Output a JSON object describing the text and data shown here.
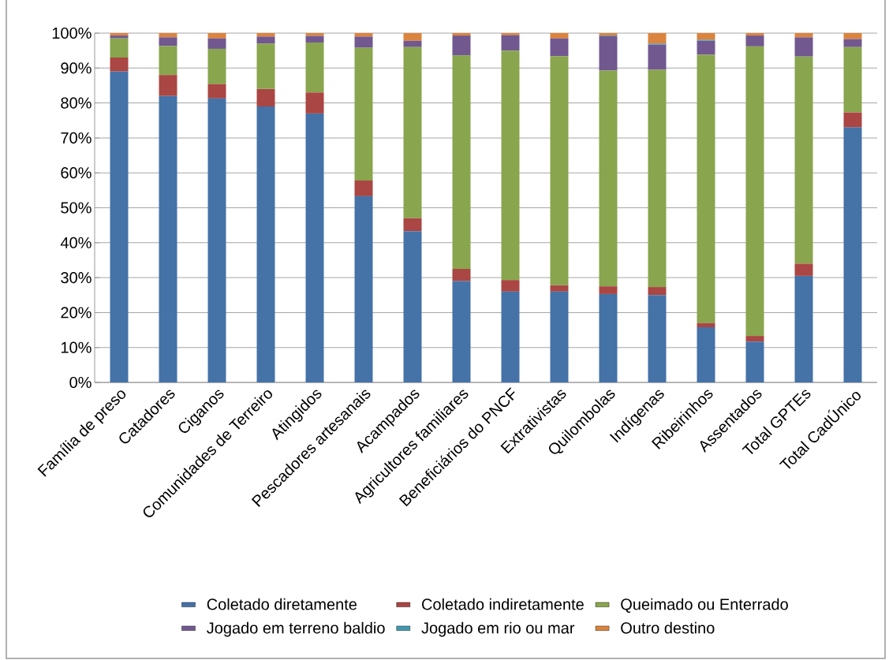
{
  "chart_data": {
    "type": "bar",
    "stacked": true,
    "categories": [
      "Família de preso",
      "Catadores",
      "Ciganos",
      "Comunidades de Terreiro",
      "Atingidos",
      "Pescadores artesanais",
      "Acampados",
      "Agricultores familiares",
      "Beneficiários do PNCF",
      "Extrativistas",
      "Quilombolas",
      "Indígenas",
      "Ribeirinhos",
      "Assentados",
      "Total GPTEs",
      "Total CadÚnico"
    ],
    "series": [
      {
        "name": "Coletado diretamente",
        "color": "#4572a7",
        "values": [
          89,
          82,
          81.3,
          79,
          77,
          53.3,
          43.3,
          29,
          26,
          26,
          25.3,
          25,
          15.8,
          11.7,
          30.5,
          73
        ]
      },
      {
        "name": "Coletado indiretamente",
        "color": "#aa4643",
        "values": [
          4,
          6,
          4.1,
          5,
          6,
          4.5,
          3.7,
          3.5,
          3.3,
          1.8,
          2.2,
          2.3,
          1.2,
          1.6,
          3.5,
          4.3
        ]
      },
      {
        "name": "Queimado ou Enterrado",
        "color": "#89a54e",
        "values": [
          5.5,
          8.3,
          10.1,
          13,
          14.3,
          38,
          49,
          61.1,
          65.7,
          65.6,
          61.8,
          62.2,
          76.8,
          82.9,
          59.3,
          18.7
        ]
      },
      {
        "name": "Jogado em terreno baldio",
        "color": "#71588f",
        "values": [
          0.8,
          2.5,
          3,
          2,
          1.9,
          3.2,
          1.8,
          5.7,
          4.4,
          5.1,
          9.8,
          7.2,
          4,
          3.1,
          5.5,
          2.3
        ]
      },
      {
        "name": "Jogado em rio ou mar",
        "color": "#4198af",
        "values": [
          0,
          0,
          0,
          0,
          0,
          0,
          0,
          0,
          0,
          0,
          0.2,
          0.3,
          0.3,
          0,
          0,
          0
        ]
      },
      {
        "name": "Outro destino",
        "color": "#db843d",
        "values": [
          0.7,
          1.2,
          1.5,
          1,
          0.8,
          1,
          2.2,
          0.7,
          0.6,
          1.5,
          0.7,
          3,
          1.9,
          0.7,
          1.2,
          1.7
        ]
      }
    ],
    "ylim": [
      0,
      100
    ],
    "yticks": [
      {
        "value": 0,
        "label": "0%"
      },
      {
        "value": 10,
        "label": "10%"
      },
      {
        "value": 20,
        "label": "20%"
      },
      {
        "value": 30,
        "label": "30%"
      },
      {
        "value": 40,
        "label": "40%"
      },
      {
        "value": 50,
        "label": "50%"
      },
      {
        "value": 60,
        "label": "60%"
      },
      {
        "value": 70,
        "label": "70%"
      },
      {
        "value": 80,
        "label": "80%"
      },
      {
        "value": 90,
        "label": "90%"
      },
      {
        "value": 100,
        "label": "100%"
      }
    ],
    "grid": "y",
    "legend": "bottom"
  }
}
